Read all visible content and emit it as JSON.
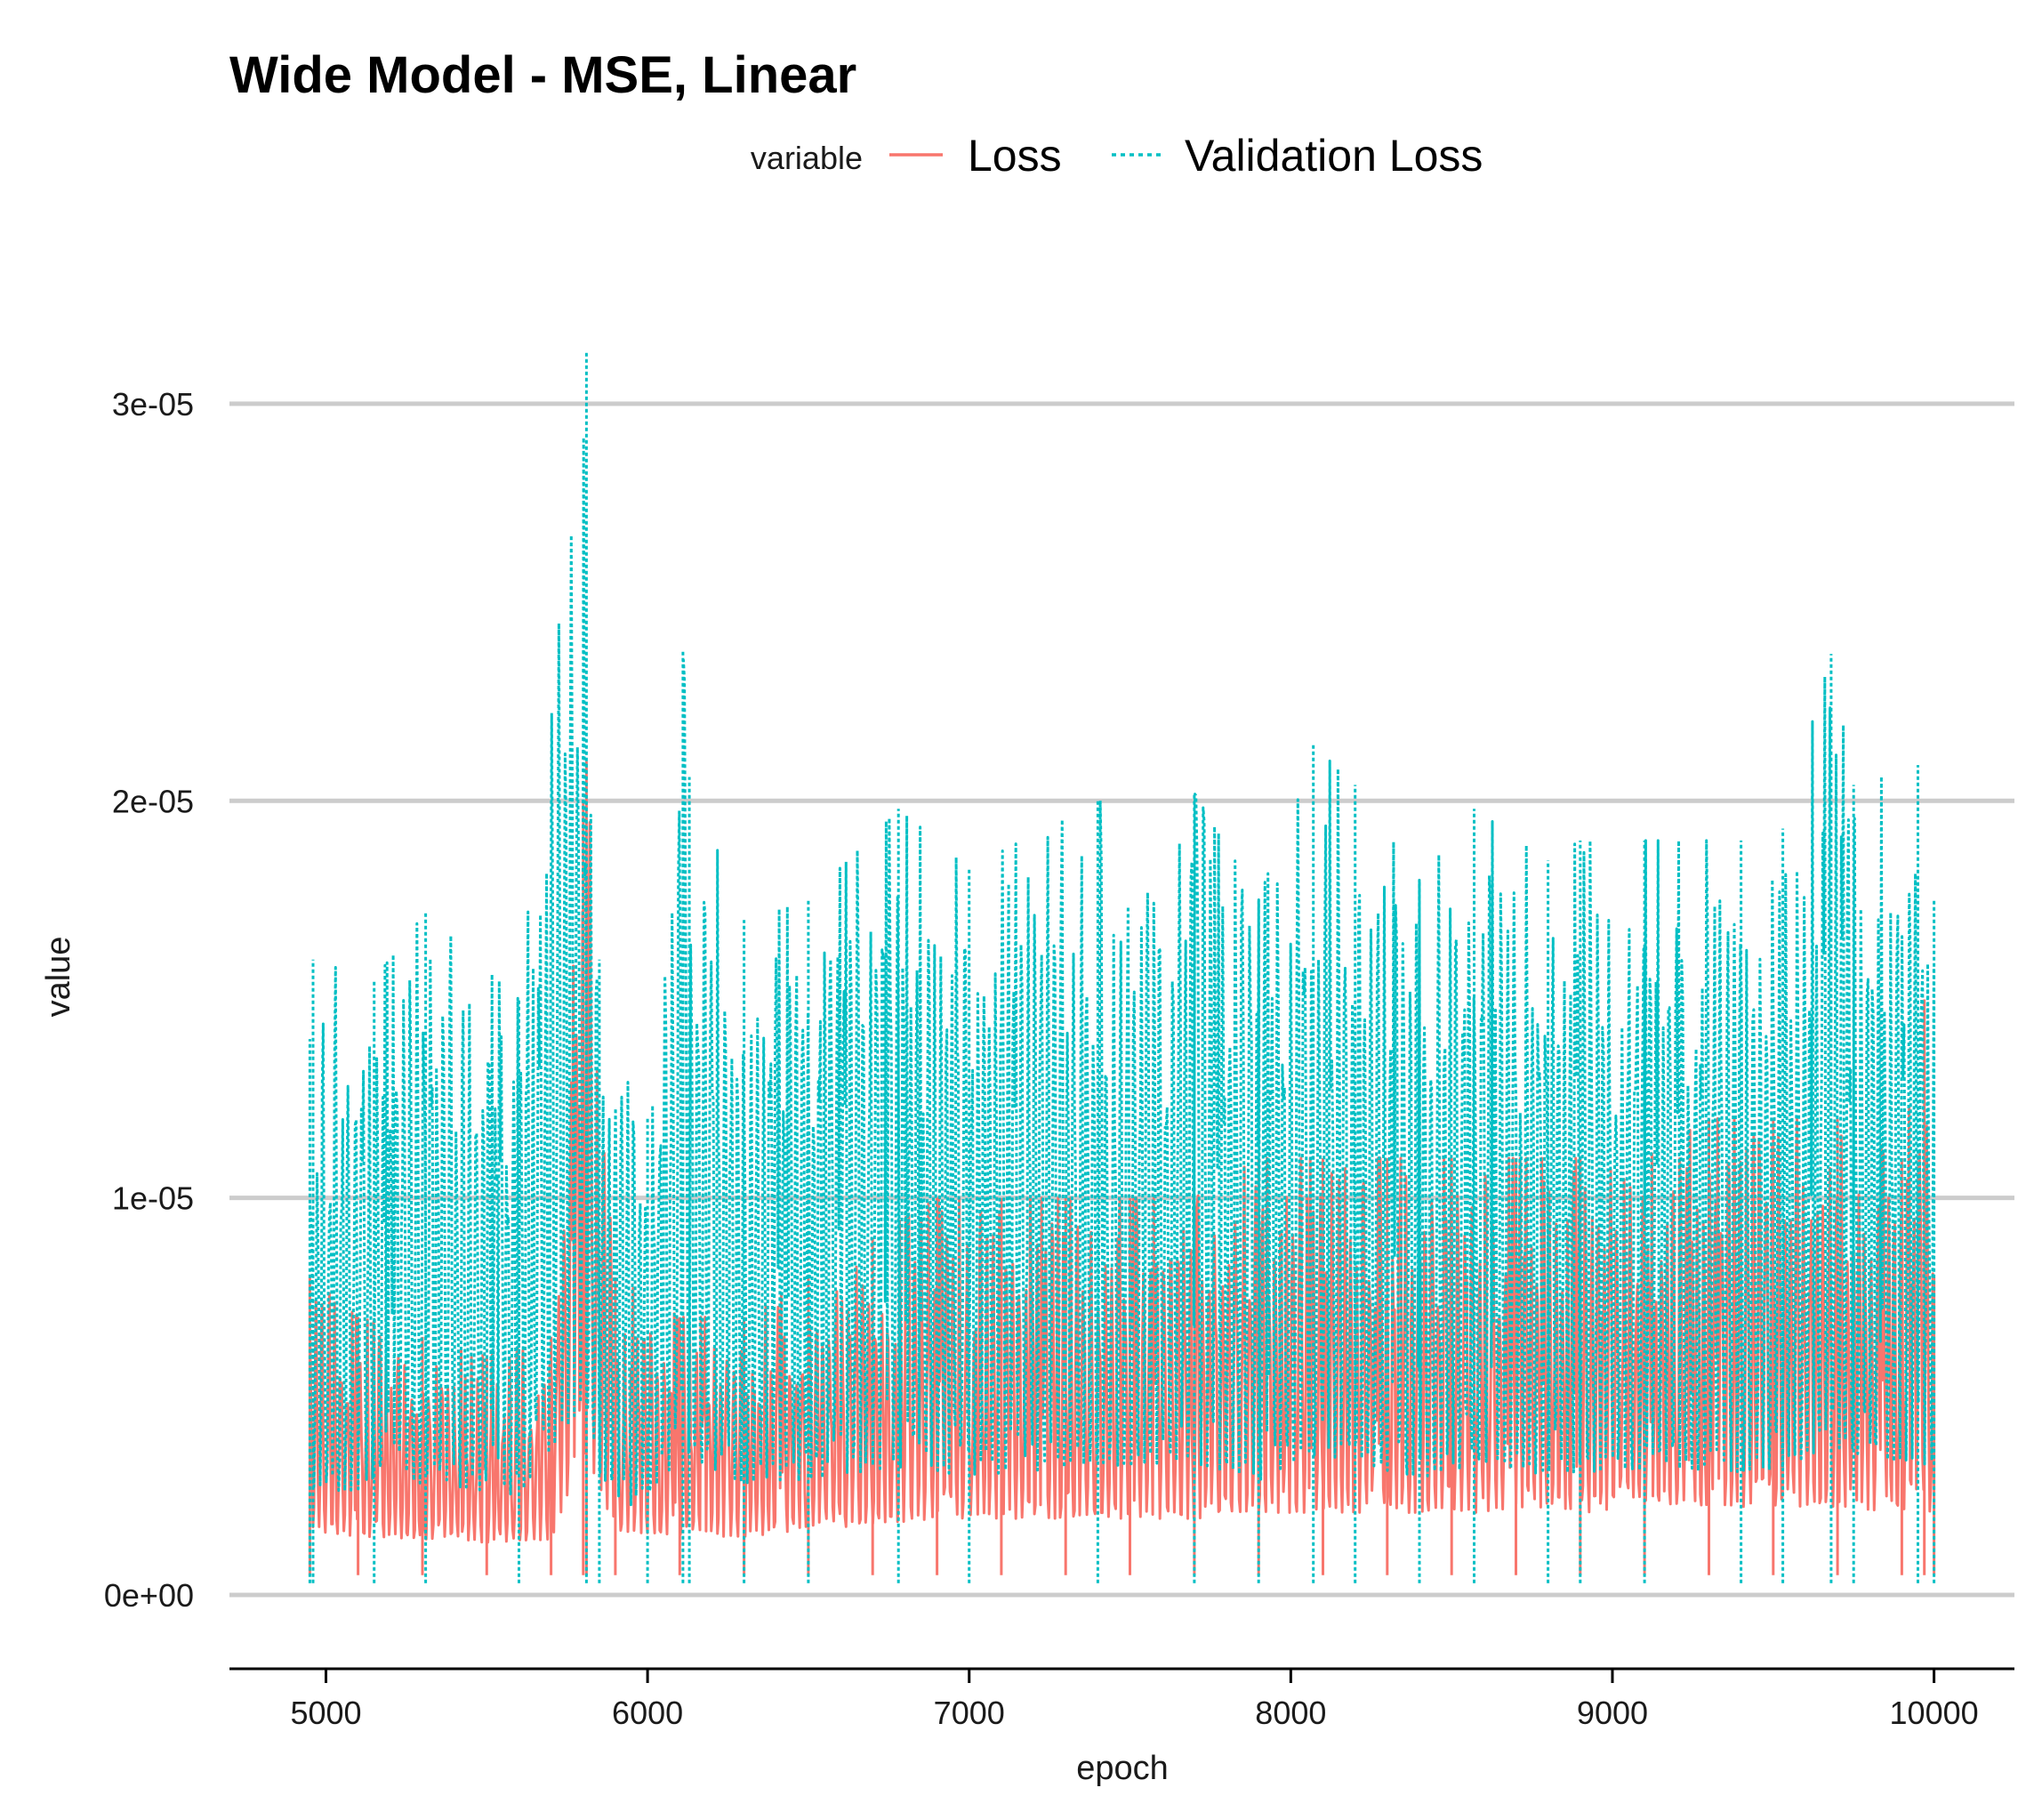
{
  "chart_data": {
    "type": "line",
    "title": "Wide Model - MSE, Linear",
    "xlabel": "epoch",
    "ylabel": "value",
    "xlim": [
      4700,
      10250
    ],
    "ylim": [
      -1.5e-06,
      3.3e-05
    ],
    "x_ticks": [
      5000,
      6000,
      7000,
      8000,
      9000,
      10000
    ],
    "x_tick_labels": [
      "5000",
      "6000",
      "7000",
      "8000",
      "9000",
      "10000"
    ],
    "y_ticks": [
      0,
      1e-05,
      2e-05,
      3e-05
    ],
    "y_tick_labels": [
      "0e+00",
      "1e-05",
      "2e-05",
      "3e-05"
    ],
    "grid": "horizontal major",
    "legend": {
      "title": "variable",
      "position": "top"
    },
    "x_range": [
      4950,
      10000
    ],
    "series": [
      {
        "name": "Loss",
        "color": "#F8766D",
        "dash": "solid",
        "x": [
          4950,
          5100,
          5300,
          5500,
          5700,
          5800,
          5810,
          5900,
          6100,
          6300,
          6500,
          6700,
          6900,
          7100,
          7300,
          7500,
          7700,
          7900,
          8100,
          8300,
          8500,
          8700,
          8900,
          9100,
          9300,
          9500,
          9700,
          9900,
          9970,
          10000
        ],
        "y": [
          8e-06,
          7e-06,
          6.5e-06,
          6e-06,
          6.5e-06,
          2e-05,
          2.1e-05,
          8e-06,
          7e-06,
          7e-06,
          8e-06,
          9e-06,
          1e-05,
          1e-05,
          1e-05,
          1e-05,
          1e-05,
          1.1e-05,
          1.1e-05,
          1.1e-05,
          1.1e-05,
          1.1e-05,
          1.1e-05,
          1.1e-05,
          1.2e-05,
          1.2e-05,
          1.2e-05,
          1.1e-05,
          1.5e-05,
          8e-06
        ]
      },
      {
        "name": "Validation Loss",
        "color": "#00BFC4",
        "dash": "dotted",
        "x": [
          4950,
          4960,
          5150,
          5310,
          5600,
          5810,
          5850,
          6000,
          6110,
          6130,
          6300,
          6500,
          6780,
          7000,
          7400,
          7700,
          7900,
          8070,
          8200,
          8400,
          8570,
          8800,
          8900,
          9100,
          9400,
          9530,
          9680,
          9750,
          9950,
          10000
        ],
        "y": [
          1.4e-05,
          1.6e-05,
          1.55e-05,
          1.72e-05,
          1.5e-05,
          3.13e-05,
          1.6e-05,
          1.2e-05,
          2.38e-05,
          2.06e-05,
          1.7e-05,
          1.75e-05,
          1.98e-05,
          1.83e-05,
          2e-05,
          2.02e-05,
          1.75e-05,
          2.14e-05,
          2.04e-05,
          1.8e-05,
          1.98e-05,
          1.85e-05,
          1.9e-05,
          1.9e-05,
          1.9e-05,
          1.93e-05,
          2.37e-05,
          2.04e-05,
          2.09e-05,
          1.75e-05
        ]
      }
    ]
  }
}
